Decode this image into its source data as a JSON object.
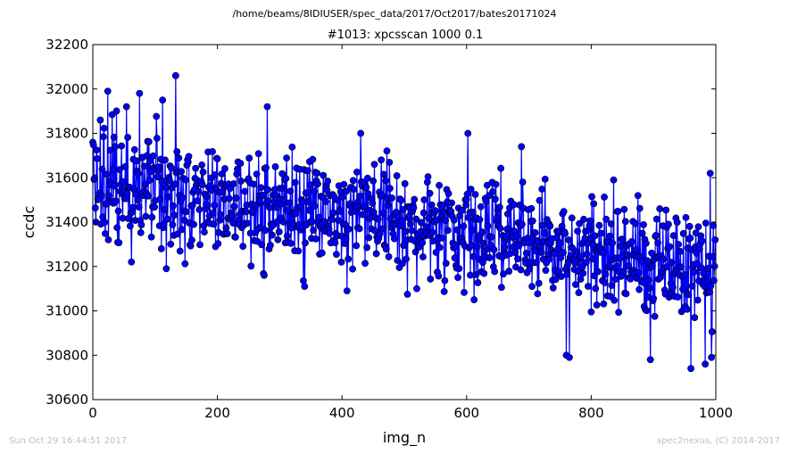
{
  "chart_data": {
    "type": "line",
    "suptitle": "/home/beams/8IDIUSER/spec_data/2017/Oct2017/bates20171024",
    "title": "#1013: xpcsscan 1000 0.1",
    "xlabel": "img_n",
    "ylabel": "ccdc",
    "xlim": [
      0,
      1000
    ],
    "ylim": [
      30600,
      32200
    ],
    "xticks": [
      0,
      200,
      400,
      600,
      800,
      1000
    ],
    "yticks": [
      30600,
      30800,
      31000,
      31200,
      31400,
      31600,
      31800,
      32000,
      32200
    ],
    "series_color": "#0000ff",
    "marker": "circle",
    "grid": false,
    "legend": "none",
    "trend": {
      "start": 31600,
      "end": 31180
    },
    "noise_amplitude": 180,
    "n_points": 1000,
    "notable_points": [
      {
        "x": 0,
        "y": 31760
      },
      {
        "x": 5,
        "y": 31400
      },
      {
        "x": 12,
        "y": 31860
      },
      {
        "x": 24,
        "y": 31990
      },
      {
        "x": 25,
        "y": 31320
      },
      {
        "x": 54,
        "y": 31920
      },
      {
        "x": 62,
        "y": 31220
      },
      {
        "x": 75,
        "y": 31980
      },
      {
        "x": 112,
        "y": 31950
      },
      {
        "x": 118,
        "y": 31190
      },
      {
        "x": 133,
        "y": 32060
      },
      {
        "x": 280,
        "y": 31920
      },
      {
        "x": 275,
        "y": 31160
      },
      {
        "x": 340,
        "y": 31110
      },
      {
        "x": 408,
        "y": 31090
      },
      {
        "x": 430,
        "y": 31800
      },
      {
        "x": 520,
        "y": 31100
      },
      {
        "x": 602,
        "y": 31800
      },
      {
        "x": 612,
        "y": 31050
      },
      {
        "x": 688,
        "y": 31740
      },
      {
        "x": 760,
        "y": 30800
      },
      {
        "x": 765,
        "y": 30790
      },
      {
        "x": 836,
        "y": 31590
      },
      {
        "x": 895,
        "y": 30780
      },
      {
        "x": 910,
        "y": 31460
      },
      {
        "x": 960,
        "y": 30740
      },
      {
        "x": 983,
        "y": 30760
      },
      {
        "x": 991,
        "y": 31620
      },
      {
        "x": 993,
        "y": 30790
      },
      {
        "x": 999,
        "y": 31320
      }
    ]
  },
  "footer": {
    "left": "Sun Oct 29 16:44:51 2017",
    "right": "spec2nexus, (C) 2014-2017"
  }
}
